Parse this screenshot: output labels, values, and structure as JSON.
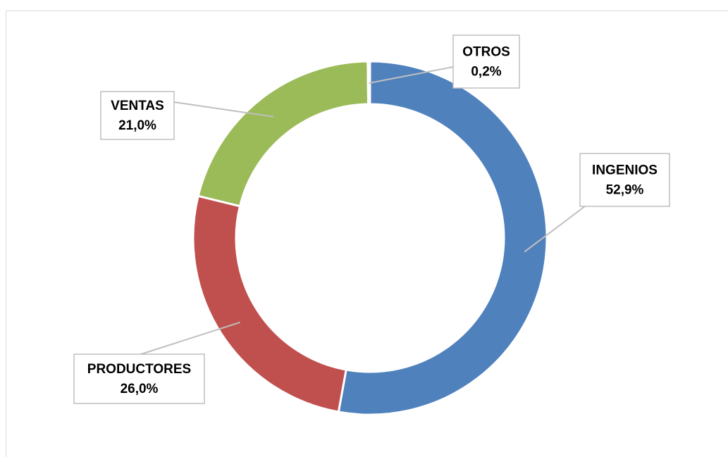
{
  "chart_data": {
    "type": "donut",
    "categories": [
      "INGENIOS",
      "PRODUCTORES",
      "VENTAS",
      "OTROS"
    ],
    "values": [
      52.9,
      26.0,
      21.0,
      0.2
    ],
    "value_labels": [
      "52,9%",
      "26,0%",
      "21,0%",
      "0,2%"
    ],
    "colors": [
      "#4f81bd",
      "#c0504d",
      "#9bbb59",
      "#8064a2"
    ]
  }
}
